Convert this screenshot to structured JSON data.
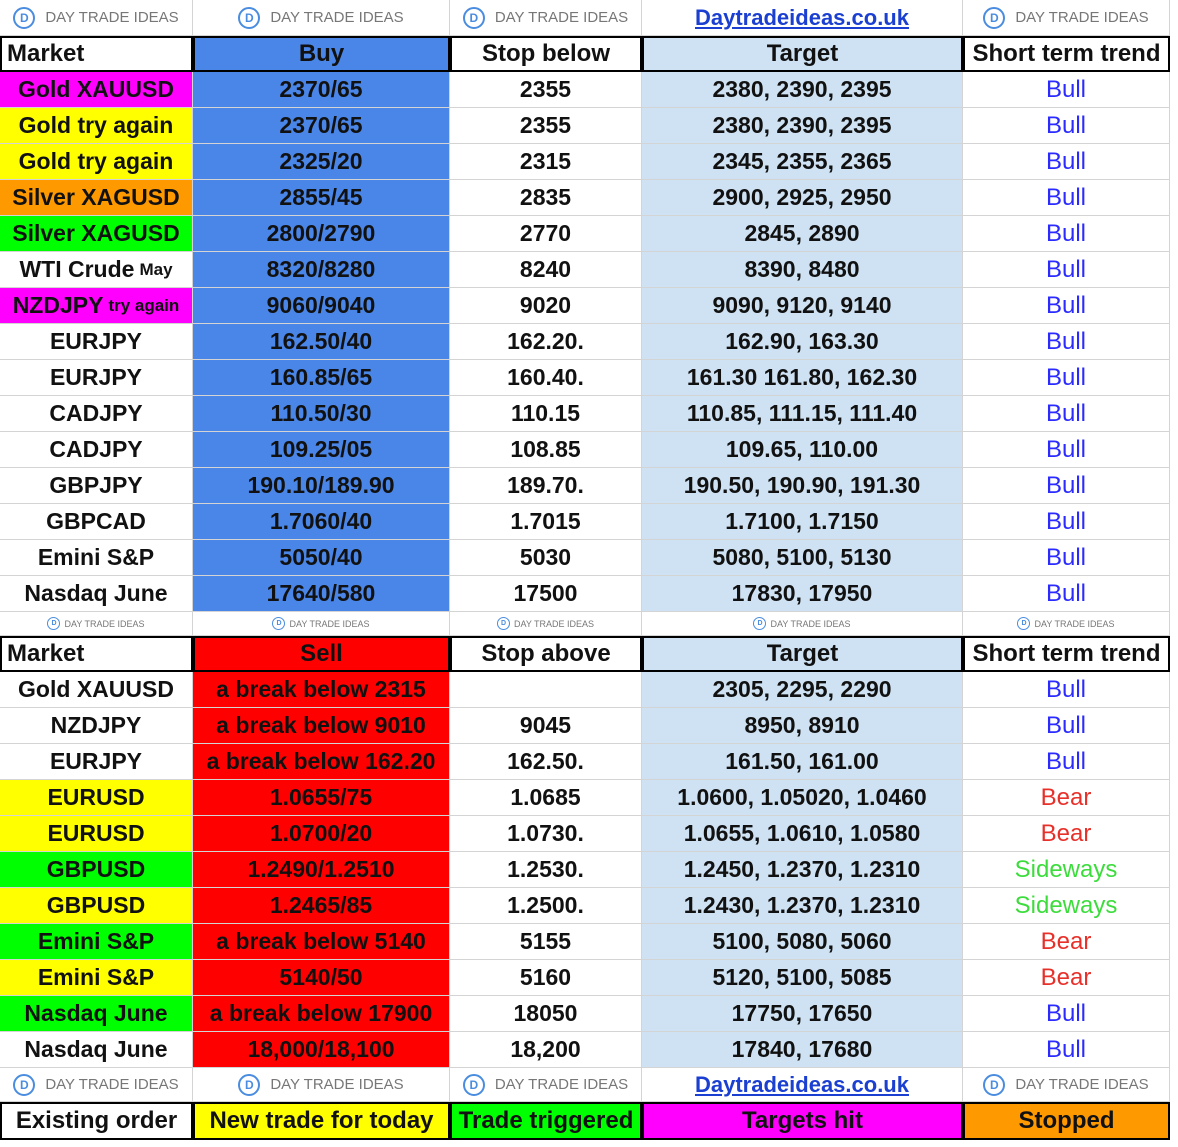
{
  "banner_top": [
    "DAY TRADE IDEAS",
    "DAY TRADE IDEAS",
    "DAY TRADE IDEAS",
    "Daytradeideas.co.uk",
    "DAY TRADE IDEAS"
  ],
  "buy": {
    "headers": [
      "Market",
      "Buy",
      "Stop below",
      "Target",
      "Short term trend"
    ],
    "rows": [
      {
        "market": "Gold XAUUSD",
        "highlight": "#ff00ff",
        "buy": "2370/65",
        "stop": "2355",
        "target": "2380, 2390, 2395",
        "trend": "Bull",
        "trend_color": "#2b2bff"
      },
      {
        "market": "Gold try again",
        "highlight": "#ffff00",
        "buy": "2370/65",
        "stop": "2355",
        "target": "2380, 2390, 2395",
        "trend": "Bull",
        "trend_color": "#2b2bff"
      },
      {
        "market": "Gold try again",
        "highlight": "#ffff00",
        "buy": "2325/20",
        "stop": "2315",
        "target": "2345, 2355, 2365",
        "trend": "Bull",
        "trend_color": "#2b2bff"
      },
      {
        "market": "Silver XAGUSD",
        "highlight": "#ff9900",
        "buy": "2855/45",
        "stop": "2835",
        "target": "2900, 2925, 2950",
        "trend": "Bull",
        "trend_color": "#2b2bff"
      },
      {
        "market": "Silver XAGUSD",
        "highlight": "#00ff00",
        "buy": "2800/2790",
        "stop": "2770",
        "target": "2845, 2890",
        "trend": "Bull",
        "trend_color": "#2b2bff"
      },
      {
        "market": "WTI Crude",
        "note": "May",
        "highlight": "#ffffff",
        "buy": "8320/8280",
        "stop": "8240",
        "target": "8390, 8480",
        "trend": "Bull",
        "trend_color": "#2b2bff"
      },
      {
        "market": "NZDJPY",
        "note": "try again",
        "highlight": "#ff00ff",
        "buy": "9060/9040",
        "stop": "9020",
        "target": "9090, 9120, 9140",
        "trend": "Bull",
        "trend_color": "#2b2bff"
      },
      {
        "market": "EURJPY",
        "highlight": "#ffffff",
        "buy": "162.50/40",
        "stop": "162.20.",
        "target": "162.90, 163.30",
        "trend": "Bull",
        "trend_color": "#2b2bff"
      },
      {
        "market": "EURJPY",
        "highlight": "#ffffff",
        "buy": "160.85/65",
        "stop": "160.40.",
        "target": "161.30 161.80, 162.30",
        "trend": "Bull",
        "trend_color": "#2b2bff"
      },
      {
        "market": "CADJPY",
        "highlight": "#ffffff",
        "buy": "110.50/30",
        "stop": "110.15",
        "target": "110.85, 111.15, 111.40",
        "trend": "Bull",
        "trend_color": "#2b2bff"
      },
      {
        "market": "CADJPY",
        "highlight": "#ffffff",
        "buy": "109.25/05",
        "stop": "108.85",
        "target": "109.65, 110.00",
        "trend": "Bull",
        "trend_color": "#2b2bff"
      },
      {
        "market": "GBPJPY",
        "highlight": "#ffffff",
        "buy": "190.10/189.90",
        "stop": "189.70.",
        "target": "190.50, 190.90, 191.30",
        "trend": "Bull",
        "trend_color": "#2b2bff"
      },
      {
        "market": "GBPCAD",
        "highlight": "#ffffff",
        "buy": "1.7060/40",
        "stop": "1.7015",
        "target": "1.7100, 1.7150",
        "trend": "Bull",
        "trend_color": "#2b2bff"
      },
      {
        "market": "Emini S&P",
        "highlight": "#ffffff",
        "buy": "5050/40",
        "stop": "5030",
        "target": "5080, 5100, 5130",
        "trend": "Bull",
        "trend_color": "#2b2bff"
      },
      {
        "market": "Nasdaq June",
        "highlight": "#ffffff",
        "buy": "17640/580",
        "stop": "17500",
        "target": "17830, 17950",
        "trend": "Bull",
        "trend_color": "#2b2bff"
      }
    ]
  },
  "banner_middle": [
    "DAY TRADE IDEAS",
    "DAY TRADE IDEAS",
    "DAY TRADE IDEAS",
    "DAY TRADE IDEAS",
    "DAY TRADE IDEAS"
  ],
  "sell": {
    "headers": [
      "Market",
      "Sell",
      "Stop above",
      "Target",
      "Short term trend"
    ],
    "rows": [
      {
        "market": "Gold XAUUSD",
        "highlight": "#ffffff",
        "sell": "a break below 2315",
        "stop": null,
        "target": "2305, 2295, 2290",
        "trend": "Bull",
        "trend_color": "#2b2bff"
      },
      {
        "market": "NZDJPY",
        "highlight": "#ffffff",
        "sell": "a break below 9010",
        "stop": "9045",
        "target": "8950, 8910",
        "trend": "Bull",
        "trend_color": "#2b2bff"
      },
      {
        "market": "EURJPY",
        "highlight": "#ffffff",
        "sell": "a break below 162.20",
        "stop": "162.50.",
        "target": "161.50, 161.00",
        "trend": "Bull",
        "trend_color": "#2b2bff"
      },
      {
        "market": "EURUSD",
        "highlight": "#ffff00",
        "sell": "1.0655/75",
        "stop": "1.0685",
        "target": "1.0600, 1.05020, 1.0460",
        "trend": "Bear",
        "trend_color": "#e8302a"
      },
      {
        "market": "EURUSD",
        "highlight": "#ffff00",
        "sell": "1.0700/20",
        "stop": "1.0730.",
        "target": "1.0655, 1.0610, 1.0580",
        "trend": "Bear",
        "trend_color": "#e8302a"
      },
      {
        "market": "GBPUSD",
        "highlight": "#00ff00",
        "sell": "1.2490/1.2510",
        "stop": "1.2530.",
        "target": "1.2450, 1.2370, 1.2310",
        "trend": "Sideways",
        "trend_color": "#3ddc3d"
      },
      {
        "market": "GBPUSD",
        "highlight": "#ffff00",
        "sell": "1.2465/85",
        "stop": "1.2500.",
        "target": "1.2430, 1.2370, 1.2310",
        "trend": "Sideways",
        "trend_color": "#3ddc3d"
      },
      {
        "market": "Emini S&P",
        "highlight": "#00ff00",
        "sell": "a break below 5140",
        "stop": "5155",
        "target": "5100, 5080, 5060",
        "trend": "Bear",
        "trend_color": "#e8302a"
      },
      {
        "market": "Emini S&P",
        "highlight": "#ffff00",
        "sell": "5140/50",
        "stop": "5160",
        "target": "5120, 5100, 5085",
        "trend": "Bear",
        "trend_color": "#e8302a"
      },
      {
        "market": "Nasdaq June",
        "highlight": "#00ff00",
        "sell": "a break below 17900",
        "stop": "18050",
        "target": "17750, 17650",
        "trend": "Bull",
        "trend_color": "#2b2bff"
      },
      {
        "market": "Nasdaq June",
        "highlight": "#ffffff",
        "sell": "18,000/18,100",
        "stop": "18,200",
        "target": "17840, 17680",
        "trend": "Bull",
        "trend_color": "#2b2bff"
      }
    ]
  },
  "banner_bottom": [
    "DAY TRADE IDEAS",
    "DAY TRADE IDEAS",
    "DAY TRADE IDEAS",
    "Daytradeideas.co.uk",
    "DAY TRADE IDEAS"
  ],
  "legend": [
    {
      "label": "Existing order",
      "color": "#ffffff"
    },
    {
      "label": "New trade for today",
      "color": "#ffff00"
    },
    {
      "label": "Trade triggered",
      "color": "#00ff00"
    },
    {
      "label": "Targets hit",
      "color": "#ff00ff"
    },
    {
      "label": "Stopped",
      "color": "#ff9900"
    }
  ]
}
